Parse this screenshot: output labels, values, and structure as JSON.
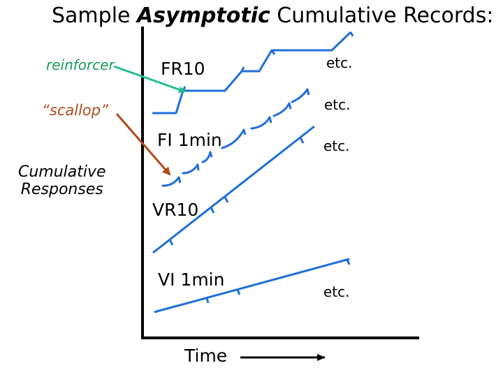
{
  "title": {
    "prefix": "Sample ",
    "emphasis": "Asymptotic",
    "suffix": " Cumulative Records:"
  },
  "labels": {
    "reinforcer": "reinforcer",
    "scallop": "“scallop”",
    "y_axis_line1": "Cumulative",
    "y_axis_line2": "Responses",
    "x_axis": "Time"
  },
  "schedules": {
    "fr": "FR10",
    "fi": "FI 1min",
    "vr": "VR10",
    "vi": "VI 1min"
  },
  "etc": {
    "fr": "etc.",
    "fi_upper": "etc.",
    "vr": "etc.",
    "vi": "etc."
  },
  "colors": {
    "record_line": "#1f6fd8",
    "axis": "#000000",
    "reinforcer_arrow": "#22c08a",
    "scallop_arrow": "#b04a1a"
  }
}
